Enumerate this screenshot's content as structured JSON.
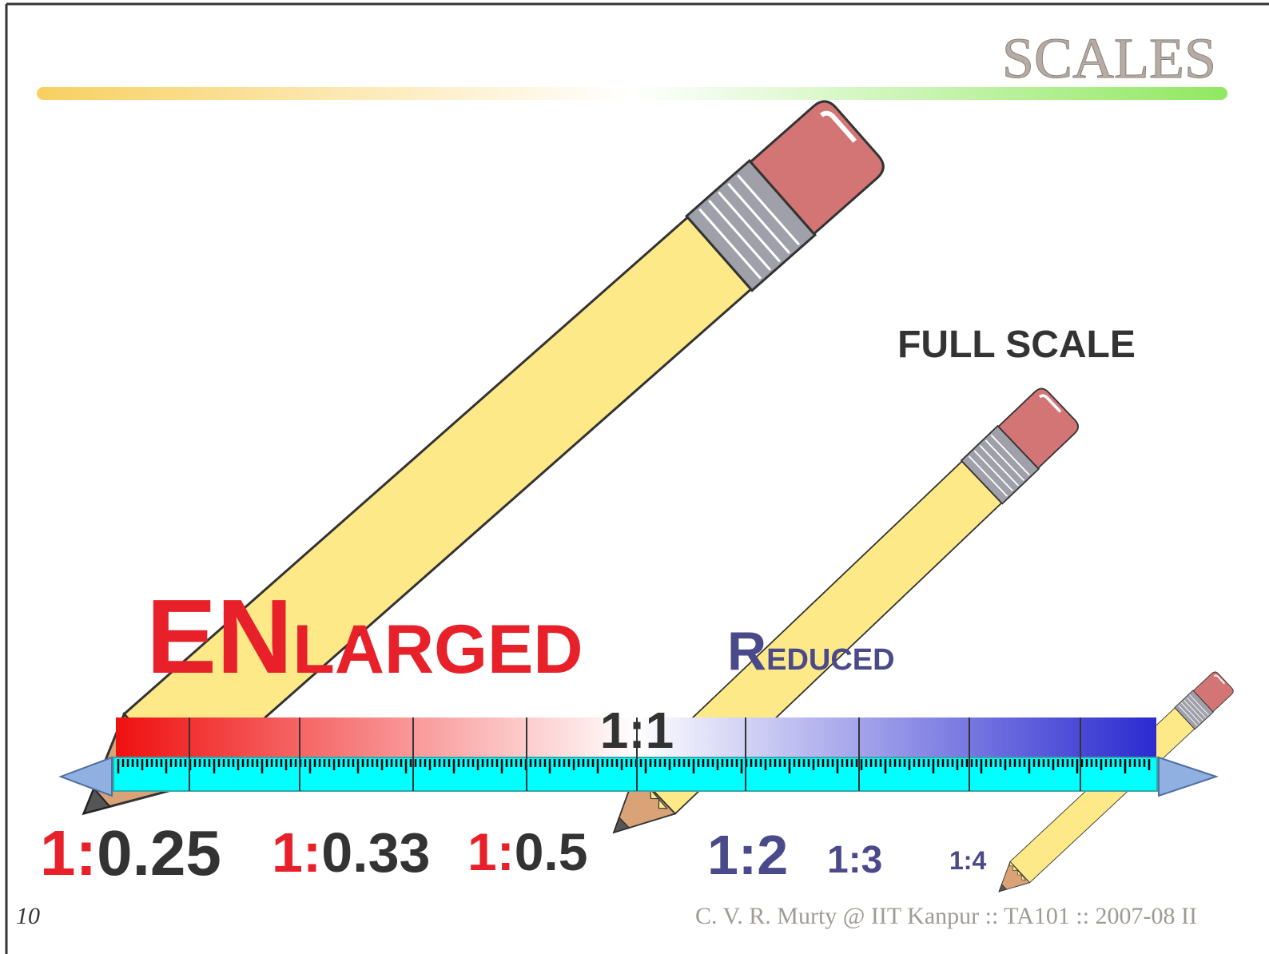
{
  "header": {
    "title": "SCALES"
  },
  "full_scale": {
    "label": "FULL SCALE",
    "ratio": "1:1"
  },
  "enlarged": {
    "parts": [
      "EN",
      "LARGED"
    ],
    "ratios": [
      {
        "ratio": "1:",
        "value": "0.25"
      },
      {
        "ratio": "1:",
        "value": "0.33"
      },
      {
        "ratio": "1:",
        "value": "0.5"
      }
    ]
  },
  "reduced": {
    "parts": [
      "R",
      "EDUCED"
    ],
    "ratios": [
      "1:2",
      "1:3",
      "1:4"
    ]
  },
  "footer": {
    "page": "10",
    "credit": "C. V. R. Murty @ IIT Kanpur :: TA101 :: 2007-08 II"
  }
}
